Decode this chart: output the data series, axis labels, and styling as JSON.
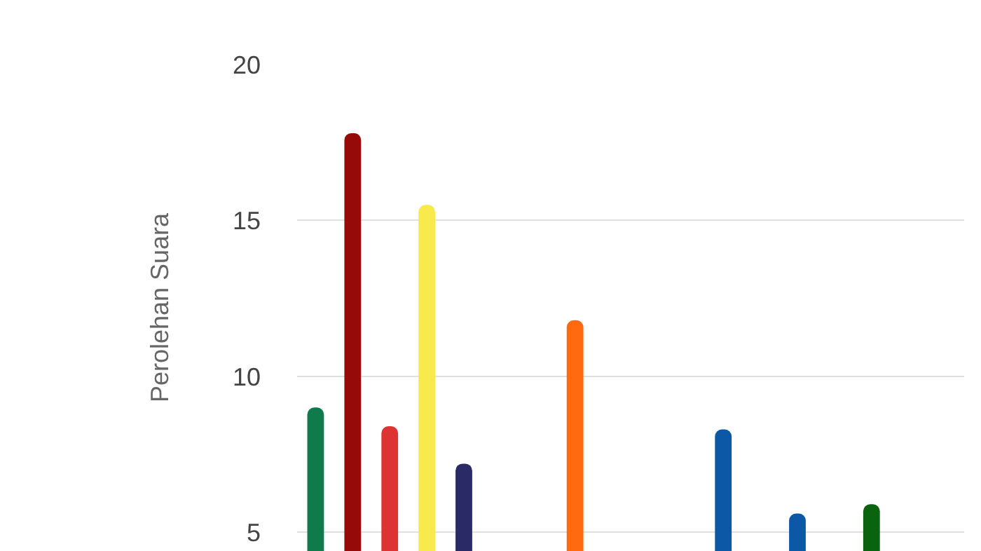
{
  "chart_data": {
    "type": "bar",
    "ylabel": "Perolehan Suara",
    "categories": [
      null,
      null,
      null,
      null,
      null,
      null,
      null,
      null,
      null,
      null,
      null,
      null,
      null,
      null,
      null,
      null,
      null,
      null
    ],
    "values": [
      9.0,
      17.8,
      8.4,
      15.5,
      7.2,
      null,
      null,
      11.8,
      null,
      null,
      null,
      8.3,
      null,
      5.6,
      null,
      5.9,
      null,
      null
    ],
    "colors": [
      "#0f7a4c",
      "#960a0a",
      "#dd3333",
      "#f7ea4a",
      "#2a2a66",
      null,
      null,
      "#ff6a10",
      null,
      null,
      null,
      "#0c58a6",
      null,
      "#0c58a6",
      null,
      "#0a640f",
      null,
      null
    ],
    "ylim": [
      4.4,
      20
    ],
    "yticks": [
      5,
      10,
      15,
      20
    ],
    "grid": "y",
    "legend": false
  }
}
